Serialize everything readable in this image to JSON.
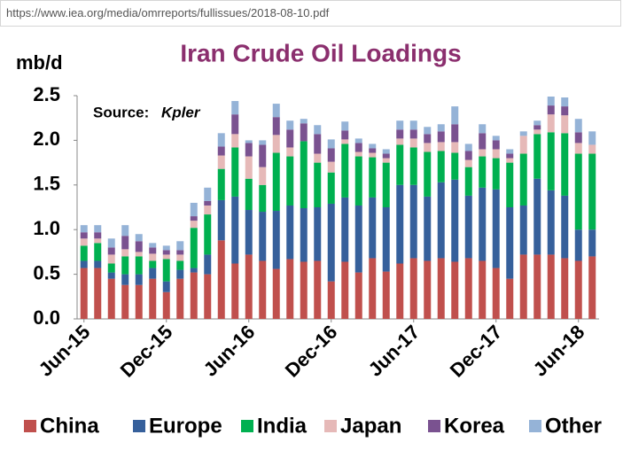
{
  "address_bar": {
    "url": "https://www.iea.org/media/omrreports/fullissues/2018-08-10.pdf"
  },
  "chart_data": {
    "type": "stacked_bar",
    "title": "Iran Crude Oil Loadings",
    "y_label": "mb/d",
    "annotations": [
      "Source:",
      "Kpler"
    ],
    "categories": [
      "Jun-15",
      null,
      null,
      null,
      null,
      null,
      "Dec-15",
      null,
      null,
      null,
      null,
      null,
      "Jun-16",
      null,
      null,
      null,
      null,
      null,
      "Dec-16",
      null,
      null,
      null,
      null,
      null,
      "Jun-17",
      null,
      null,
      null,
      null,
      null,
      "Dec-17",
      null,
      null,
      null,
      null,
      null,
      "Jun-18",
      null
    ],
    "ylim": [
      0,
      2.5
    ],
    "yticks": [
      {
        "value": 0,
        "label": "0.0"
      },
      0.5,
      {
        "value": 1,
        "label": "1.0"
      },
      1.5,
      {
        "value": 2,
        "label": "2.0"
      },
      2.5
    ],
    "grid": false,
    "legend": "bottom",
    "series": [
      {
        "name": "China",
        "color": "#c0504d",
        "values": [
          0.57,
          0.57,
          0.45,
          0.38,
          0.38,
          0.45,
          0.3,
          0.45,
          0.52,
          0.5,
          0.88,
          0.62,
          0.72,
          0.65,
          0.56,
          0.67,
          0.64,
          0.65,
          0.42,
          0.64,
          0.52,
          0.68,
          0.53,
          0.62,
          0.68,
          0.65,
          0.68,
          0.64,
          0.68,
          0.65,
          0.57,
          0.45,
          0.72,
          0.72,
          0.72,
          0.68,
          0.65,
          0.7
        ]
      },
      {
        "name": "Europe",
        "color": "#36609b",
        "values": [
          0.08,
          0.08,
          0.07,
          0.12,
          0.12,
          0.12,
          0.12,
          0.1,
          0.05,
          0.22,
          0.45,
          0.75,
          0.5,
          0.55,
          0.65,
          0.6,
          0.6,
          0.6,
          0.87,
          0.72,
          0.75,
          0.68,
          0.72,
          0.88,
          0.82,
          0.72,
          0.85,
          0.92,
          0.7,
          0.82,
          0.88,
          0.8,
          0.55,
          0.85,
          0.72,
          0.7,
          0.35,
          0.3
        ]
      },
      {
        "name": "India",
        "color": "#00b050",
        "values": [
          0.17,
          0.2,
          0.1,
          0.2,
          0.2,
          0.08,
          0.25,
          0.1,
          0.45,
          0.45,
          0.35,
          0.55,
          0.35,
          0.3,
          0.65,
          0.55,
          0.75,
          0.5,
          0.35,
          0.6,
          0.55,
          0.45,
          0.5,
          0.45,
          0.42,
          0.5,
          0.35,
          0.3,
          0.32,
          0.35,
          0.35,
          0.5,
          0.58,
          0.5,
          0.65,
          0.7,
          0.85,
          0.85
        ]
      },
      {
        "name": "Japan",
        "color": "#e6b9b8",
        "values": [
          0.08,
          0.05,
          0.1,
          0.08,
          0.05,
          0.08,
          0.05,
          0.07,
          0.08,
          0.1,
          0.15,
          0.15,
          0.25,
          0.2,
          0.2,
          0.1,
          0,
          0.1,
          0.12,
          0.05,
          0.05,
          0.05,
          0.05,
          0.07,
          0.1,
          0.1,
          0.1,
          0.12,
          0.08,
          0.08,
          0.1,
          0.05,
          0.2,
          0.05,
          0.2,
          0.2,
          0.12,
          0.1
        ]
      },
      {
        "name": "Korea",
        "color": "#7a5290",
        "values": [
          0.07,
          0.07,
          0.08,
          0.15,
          0.12,
          0.07,
          0.05,
          0.05,
          0.05,
          0.05,
          0.1,
          0.22,
          0.15,
          0.25,
          0.2,
          0.2,
          0.2,
          0.22,
          0.15,
          0.1,
          0.1,
          0.05,
          0.05,
          0.1,
          0.1,
          0.1,
          0.12,
          0.2,
          0.1,
          0.18,
          0.1,
          0.05,
          0,
          0.05,
          0.1,
          0.1,
          0.12,
          0
        ]
      },
      {
        "name": "Other",
        "color": "#95b3d7",
        "values": [
          0.08,
          0.08,
          0.1,
          0.12,
          0.08,
          0.05,
          0.05,
          0.1,
          0.15,
          0.15,
          0.15,
          0.15,
          0.03,
          0.05,
          0.15,
          0.1,
          0.05,
          0.1,
          0.1,
          0.1,
          0.05,
          0.05,
          0.05,
          0.1,
          0.1,
          0.08,
          0.08,
          0.2,
          0.08,
          0.1,
          0.05,
          0.05,
          0.05,
          0.05,
          0.1,
          0.1,
          0.15,
          0.15
        ]
      }
    ]
  }
}
